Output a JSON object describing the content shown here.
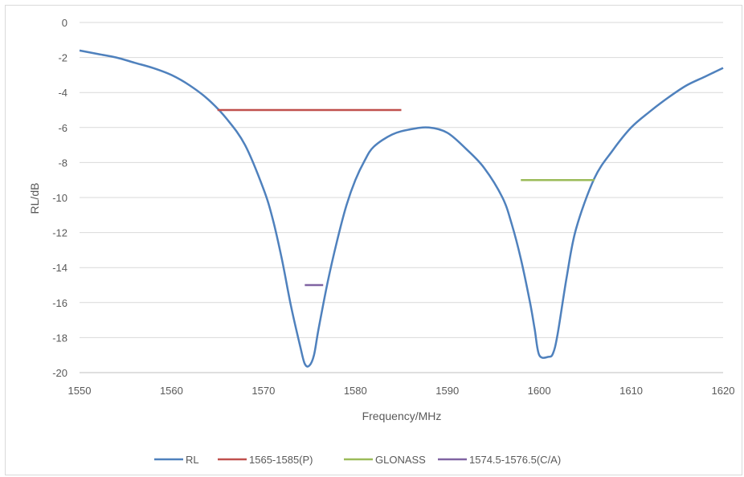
{
  "chart_data": {
    "type": "line",
    "xlabel": "Frequency/MHz",
    "ylabel": "RL/dB",
    "xlim": [
      1550,
      1620
    ],
    "ylim": [
      -20,
      0
    ],
    "x_ticks": [
      1550,
      1560,
      1570,
      1580,
      1590,
      1600,
      1610,
      1620
    ],
    "y_ticks": [
      0,
      -2,
      -4,
      -6,
      -8,
      -10,
      -12,
      -14,
      -16,
      -18,
      -20
    ],
    "grid": "horizontal",
    "legend_position": "bottom",
    "series": [
      {
        "name": "RL",
        "color": "#4f81bd",
        "x": [
          1550,
          1552,
          1554,
          1556,
          1558,
          1560,
          1562,
          1564,
          1566,
          1568,
          1570,
          1571,
          1572,
          1573,
          1574,
          1574.5,
          1575,
          1575.5,
          1576,
          1577,
          1578,
          1579,
          1580,
          1581,
          1582,
          1584,
          1586,
          1588,
          1590,
          1592,
          1594,
          1596,
          1597,
          1598,
          1599,
          1599.5,
          1600,
          1601,
          1601.5,
          1602,
          1603,
          1604,
          1606,
          1608,
          1610,
          1612,
          1614,
          1616,
          1618,
          1620
        ],
        "y": [
          -1.6,
          -1.8,
          -2.0,
          -2.3,
          -2.6,
          -3.0,
          -3.6,
          -4.4,
          -5.5,
          -7.0,
          -9.5,
          -11.2,
          -13.5,
          -16.2,
          -18.5,
          -19.5,
          -19.6,
          -19.0,
          -17.5,
          -14.8,
          -12.5,
          -10.5,
          -9.0,
          -7.9,
          -7.1,
          -6.4,
          -6.1,
          -6.0,
          -6.3,
          -7.2,
          -8.3,
          -10.0,
          -11.5,
          -13.5,
          -16.0,
          -17.5,
          -19.0,
          -19.1,
          -18.9,
          -17.8,
          -14.5,
          -11.8,
          -8.9,
          -7.3,
          -6.0,
          -5.1,
          -4.3,
          -3.6,
          -3.1,
          -2.6
        ]
      },
      {
        "name": "1565-1585(P)",
        "color": "#c0504d",
        "x": [
          1565,
          1585
        ],
        "y": [
          -5,
          -5
        ]
      },
      {
        "name": "GLONASS",
        "color": "#9bbb59",
        "x": [
          1598,
          1606
        ],
        "y": [
          -9,
          -9
        ]
      },
      {
        "name": "1574.5-1576.5(C/A)",
        "color": "#8064a2",
        "x": [
          1574.5,
          1576.5
        ],
        "y": [
          -15,
          -15
        ]
      }
    ]
  }
}
